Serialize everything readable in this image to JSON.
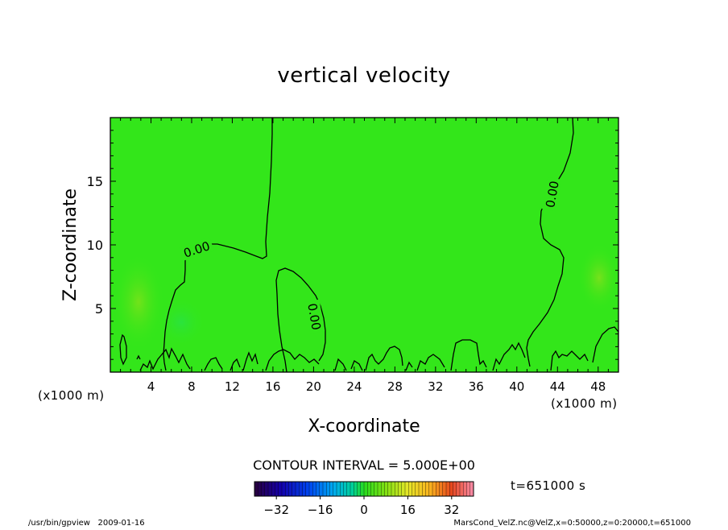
{
  "chart_data": {
    "type": "contour",
    "title": "vertical velocity",
    "xlabel": "X-coordinate",
    "ylabel": "Z-coordinate",
    "x_unit": "(x1000 m)",
    "x_unit_right": "(x1000 m)",
    "xlim": [
      0,
      50
    ],
    "ylim": [
      0,
      20
    ],
    "x_ticks": [
      4,
      8,
      12,
      16,
      20,
      24,
      28,
      32,
      36,
      40,
      44,
      48
    ],
    "y_ticks": [
      5,
      10,
      15
    ],
    "contour_label": "0.00",
    "contour_interval_text": "CONTOUR INTERVAL = 5.000E+00",
    "time_text": "t=651000 s",
    "colorbar": {
      "min": -40,
      "max": 40,
      "tick_values": [
        -32,
        -16,
        0,
        16,
        32
      ],
      "tick_labels": [
        "−32",
        "−16",
        "0",
        "16",
        "32"
      ]
    },
    "field_color": "#33e61a",
    "footer_left": "/usr/bin/gpview   2009-01-16",
    "footer_right": "MarsCond_VelZ.nc@VelZ,x=0:50000,z=0:20000,t=651000"
  }
}
